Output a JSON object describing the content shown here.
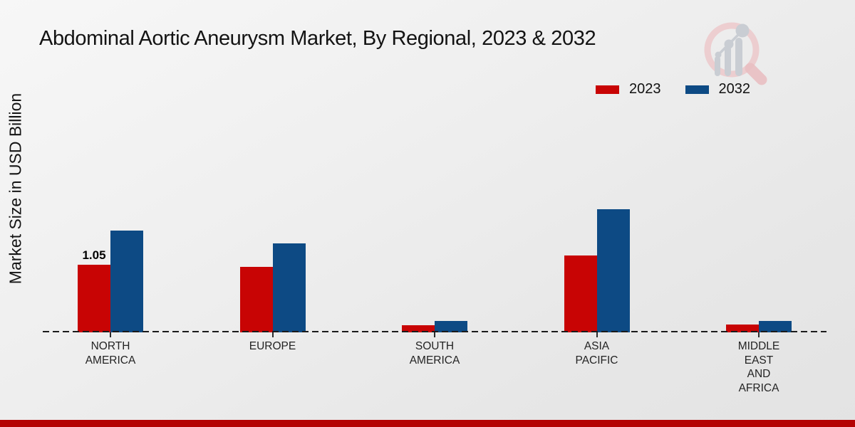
{
  "header": {
    "title": "Abdominal Aortic Aneurysm Market, By Regional, 2023 & 2032"
  },
  "y_axis": {
    "label": "Market Size in USD Billion"
  },
  "legend": [
    {
      "label": "2023",
      "color": "#c80404"
    },
    {
      "label": "2032",
      "color": "#0d4a84"
    }
  ],
  "chart_data": {
    "type": "bar",
    "title": "Abdominal Aortic Aneurysm Market, By Regional, 2023 & 2032",
    "xlabel": "",
    "ylabel": "Market Size in USD Billion",
    "unit": "USD Billion",
    "categories": [
      "NORTH AMERICA",
      "EUROPE",
      "SOUTH AMERICA",
      "ASIA PACIFIC",
      "MIDDLE EAST AND AFRICA"
    ],
    "category_label_lines": [
      [
        "NORTH",
        "AMERICA"
      ],
      [
        "EUROPE"
      ],
      [
        "SOUTH",
        "AMERICA"
      ],
      [
        "ASIA",
        "PACIFIC"
      ],
      [
        "MIDDLE",
        "EAST",
        "AND",
        "AFRICA"
      ]
    ],
    "series": [
      {
        "name": "2023",
        "color": "#c80404",
        "values": [
          1.05,
          1.02,
          0.11,
          1.2,
          0.12
        ]
      },
      {
        "name": "2032",
        "color": "#0d4a84",
        "values": [
          1.59,
          1.39,
          0.18,
          1.92,
          0.18
        ]
      }
    ],
    "ylim": [
      0,
      2.2
    ],
    "grid": false,
    "axis_style": "dashed-baseline",
    "legend_position": "top-right",
    "annotations": [
      {
        "series": "2023",
        "category": "NORTH AMERICA",
        "text": "1.05"
      }
    ]
  },
  "footer": {
    "bar_color": "#b40303"
  },
  "logo": {
    "name": "market-research-magnifier-logo",
    "ring_color": "#eccacc",
    "bars_color": "#c9cdd3"
  }
}
